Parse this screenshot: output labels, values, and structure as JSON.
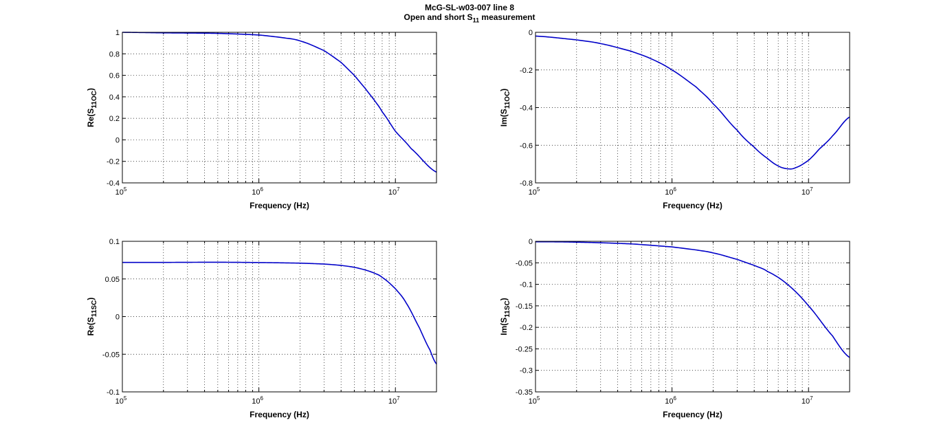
{
  "figure": {
    "title_line1": "McG-SL-w03-007 line 8",
    "title_line2_prefix": "Open and short S",
    "title_line2_sub": "11",
    "title_line2_suffix": " measurement",
    "line_color": "#0000c8"
  },
  "chart_data": [
    {
      "type": "line",
      "xscale": "log",
      "xlim": [
        100000,
        20000000
      ],
      "ylim": [
        -0.4,
        1
      ],
      "yticks": [
        -0.4,
        -0.2,
        0,
        0.2,
        0.4,
        0.6,
        0.8,
        1
      ],
      "ytick_labels": [
        "-0.4",
        "-0.2",
        "0",
        "0.2",
        "0.4",
        "0.6",
        "0.8",
        "1"
      ],
      "xlabel": "Frequency (Hz)",
      "ylabel_prefix": "Re(S",
      "ylabel_sub": "11OC",
      "ylabel_suffix": ")",
      "grid": true,
      "x": [
        100000,
        200000,
        500000,
        1000000,
        1500000,
        2000000,
        3000000,
        4000000,
        5000000,
        6000000,
        7000000,
        8000000,
        10000000,
        13000000,
        20000000
      ],
      "y": [
        1.0,
        0.995,
        0.99,
        0.975,
        0.95,
        0.92,
        0.83,
        0.72,
        0.6,
        0.48,
        0.37,
        0.26,
        0.08,
        -0.08,
        -0.3
      ]
    },
    {
      "type": "line",
      "xscale": "log",
      "xlim": [
        100000,
        20000000
      ],
      "ylim": [
        -0.8,
        0
      ],
      "yticks": [
        -0.8,
        -0.6,
        -0.4,
        -0.2,
        0
      ],
      "ytick_labels": [
        "-0.8",
        "-0.6",
        "-0.4",
        "-0.2",
        "0"
      ],
      "xlabel": "Frequency (Hz)",
      "ylabel_prefix": "Im(S",
      "ylabel_sub": "11OC",
      "ylabel_suffix": ")",
      "grid": true,
      "x": [
        100000,
        200000,
        300000,
        500000,
        700000,
        1000000,
        1500000,
        2000000,
        3000000,
        4000000,
        5000000,
        6000000,
        7000000,
        8000000,
        10000000,
        12000000,
        15000000,
        20000000
      ],
      "y": [
        -0.02,
        -0.04,
        -0.06,
        -0.1,
        -0.14,
        -0.2,
        -0.29,
        -0.38,
        -0.52,
        -0.61,
        -0.67,
        -0.71,
        -0.725,
        -0.72,
        -0.68,
        -0.62,
        -0.55,
        -0.45
      ]
    },
    {
      "type": "line",
      "xscale": "log",
      "xlim": [
        100000,
        20000000
      ],
      "ylim": [
        -0.1,
        0.1
      ],
      "yticks": [
        -0.1,
        -0.05,
        0,
        0.05,
        0.1
      ],
      "ytick_labels": [
        "-0.1",
        "-0.05",
        "0",
        "0.05",
        "0.1"
      ],
      "xlabel": "Frequency (Hz)",
      "ylabel_prefix": "Re(S",
      "ylabel_sub": "11SC",
      "ylabel_suffix": ")",
      "grid": true,
      "x": [
        100000,
        200000,
        500000,
        1000000,
        2000000,
        3000000,
        4000000,
        5000000,
        6000000,
        7000000,
        8000000,
        10000000,
        12000000,
        15000000,
        18000000,
        20000000
      ],
      "y": [
        0.072,
        0.072,
        0.0722,
        0.0718,
        0.071,
        0.0698,
        0.068,
        0.0655,
        0.062,
        0.0578,
        0.052,
        0.037,
        0.018,
        -0.015,
        -0.045,
        -0.063
      ]
    },
    {
      "type": "line",
      "xscale": "log",
      "xlim": [
        100000,
        20000000
      ],
      "ylim": [
        -0.35,
        0
      ],
      "yticks": [
        -0.35,
        -0.3,
        -0.25,
        -0.2,
        -0.15,
        -0.1,
        -0.05,
        0
      ],
      "ytick_labels": [
        "-0.35",
        "-0.3",
        "-0.25",
        "-0.2",
        "-0.15",
        "-0.1",
        "-0.05",
        "0"
      ],
      "xlabel": "Frequency (Hz)",
      "ylabel_prefix": "Im(S",
      "ylabel_sub": "11SC",
      "ylabel_suffix": ")",
      "grid": true,
      "x": [
        100000,
        200000,
        500000,
        1000000,
        1500000,
        2000000,
        3000000,
        4000000,
        5000000,
        7000000,
        10000000,
        15000000,
        20000000
      ],
      "y": [
        -0.001,
        -0.002,
        -0.006,
        -0.013,
        -0.02,
        -0.027,
        -0.042,
        -0.056,
        -0.07,
        -0.1,
        -0.15,
        -0.22,
        -0.27
      ]
    }
  ]
}
